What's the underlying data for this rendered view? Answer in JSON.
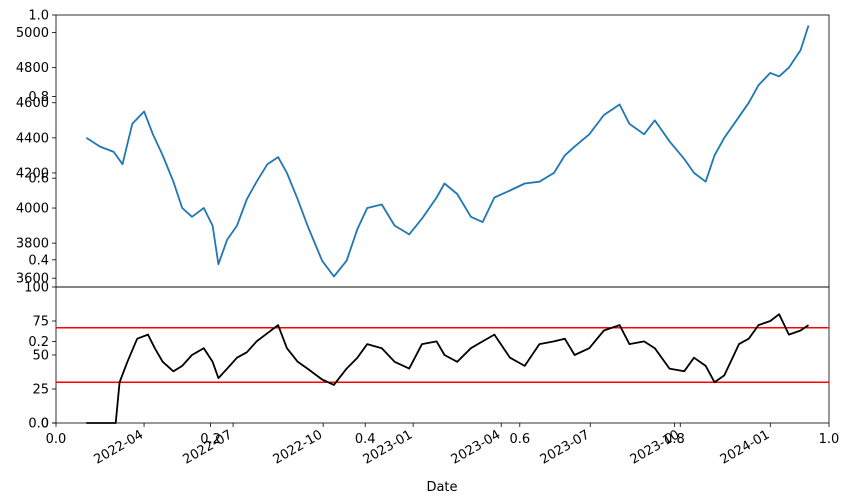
{
  "figure": {
    "base_axis": {
      "x_ticks": [
        "0.0",
        "0.2",
        "0.4",
        "0.6",
        "0.8",
        "1.0"
      ],
      "y_ticks": [
        "0.0",
        "0.2",
        "0.4",
        "0.6",
        "0.8",
        "1.0"
      ]
    }
  },
  "chart_data": [
    {
      "type": "line",
      "title": "",
      "xlabel": "",
      "ylabel": "",
      "ylim": [
        3550,
        5100
      ],
      "xlim": [
        "2022-01-01",
        "2024-03-01"
      ],
      "yticks": [
        3600,
        3800,
        4000,
        4200,
        4400,
        4600,
        4800,
        5000
      ],
      "grid": false,
      "series": [
        {
          "color": "#1f77b4",
          "x": [
            "2022-02-01",
            "2022-02-15",
            "2022-03-01",
            "2022-03-10",
            "2022-03-20",
            "2022-04-01",
            "2022-04-10",
            "2022-04-20",
            "2022-05-01",
            "2022-05-10",
            "2022-05-20",
            "2022-06-01",
            "2022-06-10",
            "2022-06-16",
            "2022-06-25",
            "2022-07-05",
            "2022-07-15",
            "2022-07-25",
            "2022-08-05",
            "2022-08-16",
            "2022-08-25",
            "2022-09-05",
            "2022-09-15",
            "2022-09-30",
            "2022-10-12",
            "2022-10-25",
            "2022-11-05",
            "2022-11-15",
            "2022-11-30",
            "2022-12-13",
            "2022-12-28",
            "2023-01-10",
            "2023-01-25",
            "2023-02-02",
            "2023-02-15",
            "2023-03-01",
            "2023-03-13",
            "2023-03-25",
            "2023-04-10",
            "2023-04-25",
            "2023-05-10",
            "2023-05-25",
            "2023-06-05",
            "2023-06-15",
            "2023-06-30",
            "2023-07-15",
            "2023-07-31",
            "2023-08-10",
            "2023-08-25",
            "2023-09-05",
            "2023-09-20",
            "2023-10-05",
            "2023-10-15",
            "2023-10-27",
            "2023-11-05",
            "2023-11-15",
            "2023-11-30",
            "2023-12-10",
            "2023-12-20",
            "2024-01-01",
            "2024-01-10",
            "2024-01-20",
            "2024-02-01",
            "2024-02-09"
          ],
          "values": [
            4400,
            4350,
            4320,
            4250,
            4480,
            4550,
            4420,
            4300,
            4150,
            4000,
            3950,
            4000,
            3900,
            3680,
            3820,
            3900,
            4050,
            4150,
            4250,
            4290,
            4200,
            4050,
            3900,
            3700,
            3610,
            3700,
            3880,
            4000,
            4020,
            3900,
            3850,
            3940,
            4060,
            4140,
            4080,
            3950,
            3920,
            4060,
            4100,
            4140,
            4150,
            4200,
            4300,
            4350,
            4420,
            4530,
            4590,
            4480,
            4420,
            4500,
            4380,
            4280,
            4200,
            4150,
            4300,
            4400,
            4520,
            4600,
            4700,
            4770,
            4750,
            4800,
            4900,
            5040
          ]
        }
      ]
    },
    {
      "type": "line",
      "title": "",
      "xlabel": "Date",
      "ylabel": "",
      "ylim": [
        0,
        100
      ],
      "xlim": [
        "2022-01-01",
        "2024-03-01"
      ],
      "yticks": [
        0,
        25,
        50,
        75,
        100
      ],
      "xticks": [
        "2022-04",
        "2022-07",
        "2022-10",
        "2023-01",
        "2023-04",
        "2023-07",
        "2023-10",
        "2024-01"
      ],
      "grid": false,
      "reference_lines": [
        {
          "y": 70,
          "color": "#ff0000"
        },
        {
          "y": 30,
          "color": "#ff0000"
        }
      ],
      "series": [
        {
          "color": "#000000",
          "x": [
            "2022-02-01",
            "2022-02-25",
            "2022-03-03",
            "2022-03-07",
            "2022-03-15",
            "2022-03-25",
            "2022-04-05",
            "2022-04-12",
            "2022-04-20",
            "2022-05-01",
            "2022-05-10",
            "2022-05-20",
            "2022-06-01",
            "2022-06-10",
            "2022-06-16",
            "2022-06-25",
            "2022-07-05",
            "2022-07-15",
            "2022-07-25",
            "2022-08-05",
            "2022-08-16",
            "2022-08-25",
            "2022-09-05",
            "2022-09-15",
            "2022-09-30",
            "2022-10-12",
            "2022-10-25",
            "2022-11-05",
            "2022-11-15",
            "2022-11-30",
            "2022-12-13",
            "2022-12-28",
            "2023-01-10",
            "2023-01-25",
            "2023-02-02",
            "2023-02-15",
            "2023-03-01",
            "2023-03-13",
            "2023-03-25",
            "2023-04-10",
            "2023-04-25",
            "2023-05-10",
            "2023-05-25",
            "2023-06-05",
            "2023-06-15",
            "2023-06-30",
            "2023-07-15",
            "2023-07-31",
            "2023-08-10",
            "2023-08-25",
            "2023-09-05",
            "2023-09-20",
            "2023-10-05",
            "2023-10-15",
            "2023-10-27",
            "2023-11-05",
            "2023-11-15",
            "2023-11-30",
            "2023-12-10",
            "2023-12-20",
            "2024-01-01",
            "2024-01-10",
            "2024-01-20",
            "2024-02-01",
            "2024-02-09"
          ],
          "values": [
            0,
            0,
            0,
            30,
            45,
            62,
            65,
            55,
            45,
            38,
            42,
            50,
            55,
            45,
            33,
            40,
            48,
            52,
            60,
            66,
            72,
            55,
            45,
            40,
            32,
            28,
            40,
            48,
            58,
            55,
            45,
            40,
            58,
            60,
            50,
            45,
            55,
            60,
            65,
            48,
            42,
            58,
            60,
            62,
            50,
            55,
            68,
            72,
            58,
            60,
            55,
            40,
            38,
            48,
            42,
            30,
            35,
            58,
            62,
            72,
            75,
            80,
            65,
            68,
            72
          ]
        }
      ]
    }
  ]
}
